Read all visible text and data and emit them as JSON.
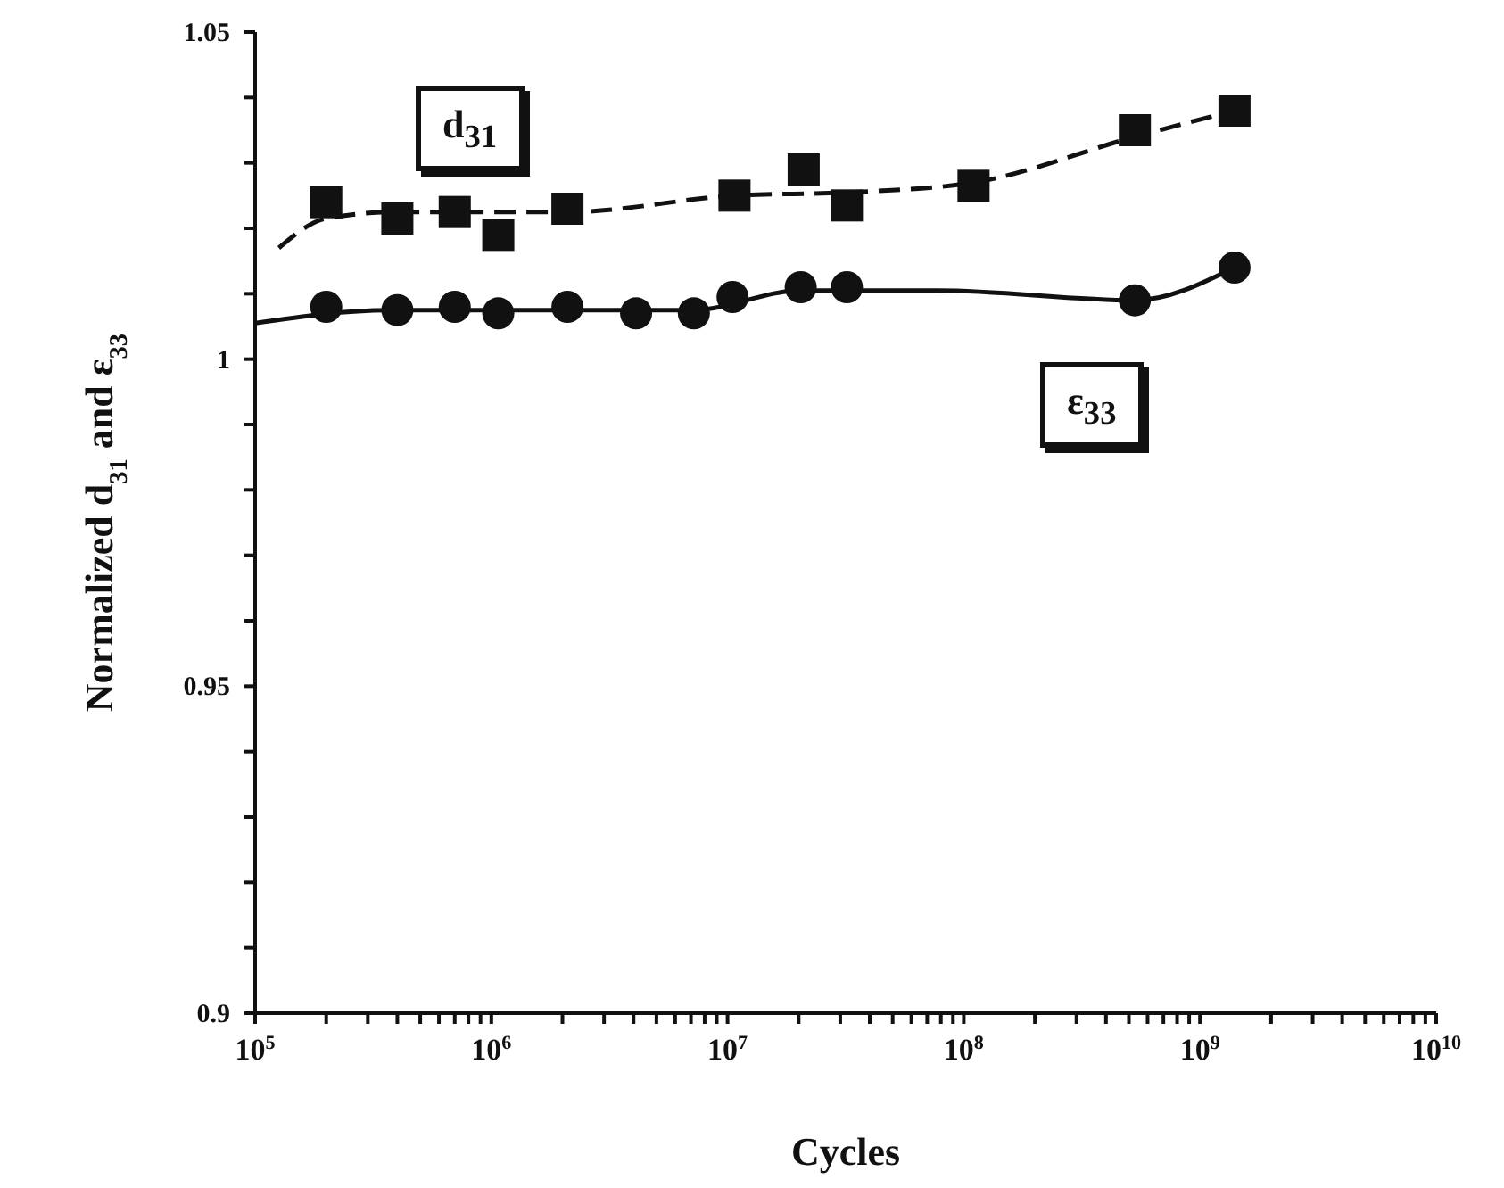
{
  "chart_data": {
    "type": "scatter",
    "xlabel": "Cycles",
    "ylabel": "Normalized d$_{31}$ and ε$_{33}$",
    "log": "x",
    "xlim": [
      100000,
      10000000000
    ],
    "xticks": [
      {
        "value": 100000,
        "label": "10$^{5}$"
      },
      {
        "value": 200000,
        "label": null
      },
      {
        "value": 300000,
        "label": null
      },
      {
        "value": 400000,
        "label": null
      },
      {
        "value": 500000,
        "label": null
      },
      {
        "value": 600000,
        "label": null
      },
      {
        "value": 700000,
        "label": null
      },
      {
        "value": 800000,
        "label": null
      },
      {
        "value": 900000,
        "label": null
      },
      {
        "value": 1000000,
        "label": "10$^{6}$"
      },
      {
        "value": 2000000,
        "label": null
      },
      {
        "value": 3000000,
        "label": null
      },
      {
        "value": 4000000,
        "label": null
      },
      {
        "value": 5000000,
        "label": null
      },
      {
        "value": 6000000,
        "label": null
      },
      {
        "value": 7000000,
        "label": null
      },
      {
        "value": 8000000,
        "label": null
      },
      {
        "value": 9000000,
        "label": null
      },
      {
        "value": 10000000,
        "label": "10$^{7}$"
      },
      {
        "value": 20000000,
        "label": null
      },
      {
        "value": 30000000,
        "label": null
      },
      {
        "value": 40000000,
        "label": null
      },
      {
        "value": 50000000,
        "label": null
      },
      {
        "value": 60000000,
        "label": null
      },
      {
        "value": 70000000,
        "label": null
      },
      {
        "value": 80000000,
        "label": null
      },
      {
        "value": 90000000,
        "label": null
      },
      {
        "value": 100000000,
        "label": "10$^{8}$"
      },
      {
        "value": 200000000,
        "label": null
      },
      {
        "value": 300000000,
        "label": null
      },
      {
        "value": 400000000,
        "label": null
      },
      {
        "value": 500000000,
        "label": null
      },
      {
        "value": 600000000,
        "label": null
      },
      {
        "value": 700000000,
        "label": null
      },
      {
        "value": 800000000,
        "label": null
      },
      {
        "value": 900000000,
        "label": null
      },
      {
        "value": 1000000000,
        "label": "10$^{9}$"
      },
      {
        "value": 2000000000,
        "label": null
      },
      {
        "value": 3000000000,
        "label": null
      },
      {
        "value": 4000000000,
        "label": null
      },
      {
        "value": 5000000000,
        "label": null
      },
      {
        "value": 6000000000,
        "label": null
      },
      {
        "value": 7000000000,
        "label": null
      },
      {
        "value": 8000000000,
        "label": null
      },
      {
        "value": 9000000000,
        "label": null
      },
      {
        "value": 10000000000,
        "label": "10$^{10}$"
      }
    ],
    "ylim": [
      0.9,
      1.05
    ],
    "yticks": [
      0.9,
      {
        "value": 0.91,
        "label": null
      },
      {
        "value": 0.92,
        "label": null
      },
      {
        "value": 0.93,
        "label": null
      },
      {
        "value": 0.94,
        "label": null
      },
      0.95,
      {
        "value": 0.96,
        "label": null
      },
      {
        "value": 0.97,
        "label": null
      },
      {
        "value": 0.98,
        "label": null
      },
      {
        "value": 0.99,
        "label": null
      },
      1,
      {
        "value": 1.01,
        "label": null
      },
      {
        "value": 1.02,
        "label": null
      },
      {
        "value": 1.03,
        "label": null
      },
      {
        "value": 1.04,
        "label": null
      },
      1.05
    ],
    "series": [
      {
        "name": "d$_{31}$",
        "marker": "square",
        "color": "#111111",
        "x": [
          200000,
          400000,
          700000,
          1070000,
          2100000,
          10700000,
          21000000,
          32000000,
          110000000,
          530000000,
          1400000000
        ],
        "values": [
          1.024,
          1.0215,
          1.0225,
          1.019,
          1.023,
          1.025,
          1.029,
          1.0235,
          1.0265,
          1.035,
          1.038
        ]
      },
      {
        "name": "ε$_{33}$",
        "marker": "circle",
        "color": "#111111",
        "x": [
          200000,
          400000,
          700000,
          1070000,
          2100000,
          4100000,
          7200000,
          10500000,
          20400000,
          32000000,
          530000000,
          1400000000
        ],
        "values": [
          1.008,
          1.0075,
          1.008,
          1.007,
          1.008,
          1.007,
          1.007,
          1.0095,
          1.011,
          1.011,
          1.009,
          1.014
        ]
      },
      {
        "type": "line",
        "marker": "none",
        "line_style": "dashed",
        "color": "#111111",
        "x": [
          126000,
          200000,
          400000,
          2100000,
          10700000,
          33000000,
          110000000,
          530000000,
          1400000000
        ],
        "values": [
          1.017,
          1.0215,
          1.0225,
          1.0225,
          1.025,
          1.0255,
          1.027,
          1.034,
          1.038
        ]
      },
      {
        "type": "line",
        "marker": "none",
        "line_style": "solid",
        "color": "#111111",
        "x": [
          100000,
          370000,
          7100000,
          20400000,
          78000000,
          530000000,
          1400000000
        ],
        "values": [
          1.0055,
          1.0075,
          1.0075,
          1.0105,
          1.0105,
          1.009,
          1.014
        ]
      }
    ]
  }
}
